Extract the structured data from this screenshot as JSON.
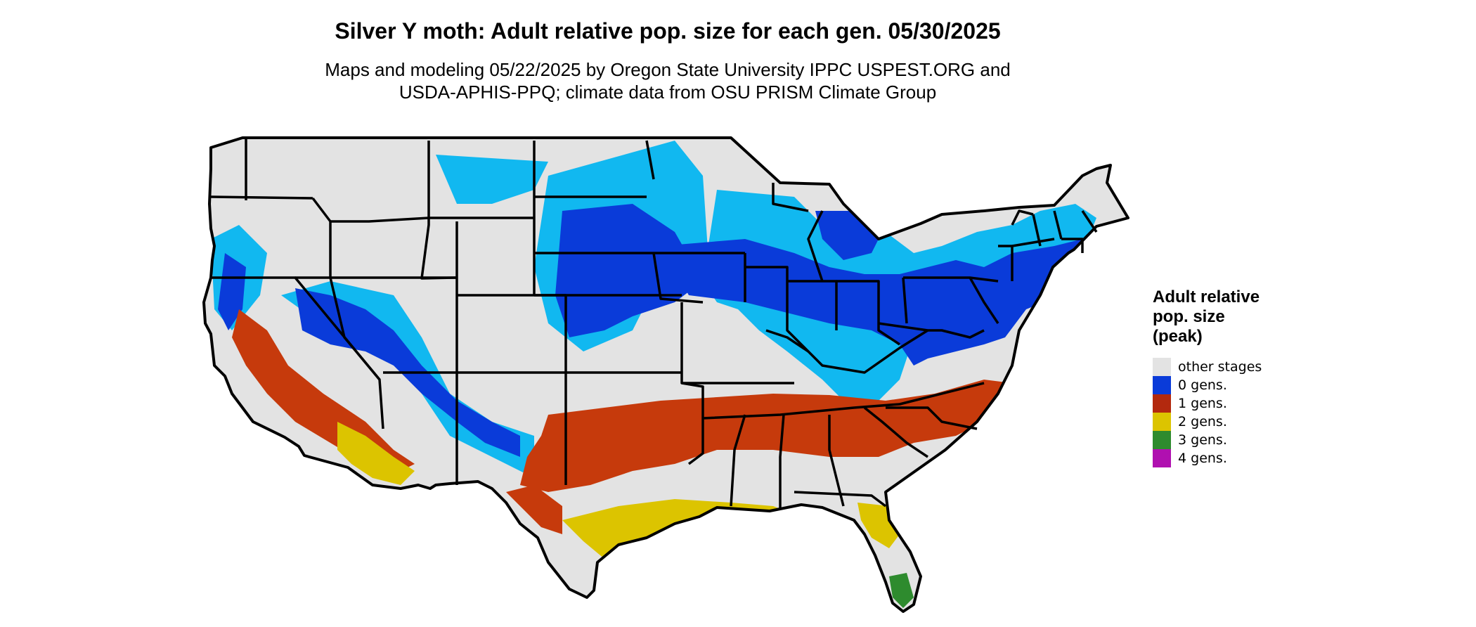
{
  "title": "Silver Y moth: Adult relative pop. size for each gen. 05/30/2025",
  "subtitle_line1": "Maps and modeling 05/22/2025 by Oregon State University IPPC USPEST.ORG and",
  "subtitle_line2": "USDA-APHIS-PPQ; climate data from OSU PRISM Climate Group",
  "legend": {
    "title_line1": "Adult relative",
    "title_line2": "pop. size",
    "title_line3": "(peak)",
    "items": [
      {
        "label": "other stages",
        "color": "#e3e3e3"
      },
      {
        "label": "0 gens.",
        "color": "#0a3bd9"
      },
      {
        "label": "1 gens.",
        "color": "#b3290e"
      },
      {
        "label": "2 gens.",
        "color": "#dcc400"
      },
      {
        "label": "3 gens.",
        "color": "#2e8b2e"
      },
      {
        "label": "4 gens.",
        "color": "#b010b0"
      }
    ]
  },
  "map": {
    "region": "conterminous United States",
    "colors": {
      "background": "#e3e3e3",
      "light_blue": "#11b8f0",
      "blue": "#0a3bd9",
      "red": "#c63a0c",
      "yellow": "#dcc400",
      "green": "#2e8b2e",
      "border": "#000000"
    }
  }
}
